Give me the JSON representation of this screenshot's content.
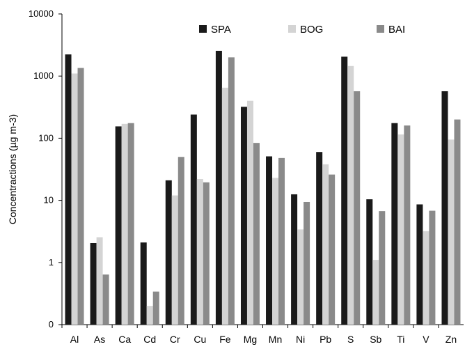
{
  "chart_data": {
    "type": "bar",
    "title": "",
    "xlabel": "",
    "ylabel": "Concentractions  (µg m-3)",
    "y_scale": "log",
    "y_zero_label": "0",
    "y_ticks": [
      {
        "value": 1,
        "label": "1"
      },
      {
        "value": 10,
        "label": "10"
      },
      {
        "value": 100,
        "label": "100"
      },
      {
        "value": 1000,
        "label": "1000"
      },
      {
        "value": 10000,
        "label": "10000"
      }
    ],
    "ylim": [
      0.1,
      10000
    ],
    "grid": false,
    "legend_position": "top-right",
    "categories": [
      "Al",
      "As",
      "Ca",
      "Cd",
      "Cr",
      "Cu",
      "Fe",
      "Mg",
      "Mn",
      "Ni",
      "Pb",
      "S",
      "Sb",
      "Ti",
      "V",
      "Zn"
    ],
    "series": [
      {
        "name": "SPA",
        "color": "#1a1a1a",
        "values": [
          2230,
          2.05,
          155,
          2.1,
          21,
          240,
          2550,
          320,
          51,
          12.5,
          60,
          2050,
          10.4,
          175,
          8.6,
          570
        ]
      },
      {
        "name": "BOG",
        "color": "#d4d4d4",
        "values": [
          1100,
          2.55,
          170,
          0.2,
          12,
          22,
          650,
          400,
          23,
          3.4,
          38,
          1450,
          1.1,
          115,
          3.2,
          95
        ]
      },
      {
        "name": "BAI",
        "color": "#8a8a8a",
        "values": [
          1350,
          0.64,
          175,
          0.34,
          50,
          19.5,
          2000,
          84,
          48,
          9.4,
          26,
          570,
          6.7,
          160,
          6.8,
          200
        ]
      }
    ]
  }
}
